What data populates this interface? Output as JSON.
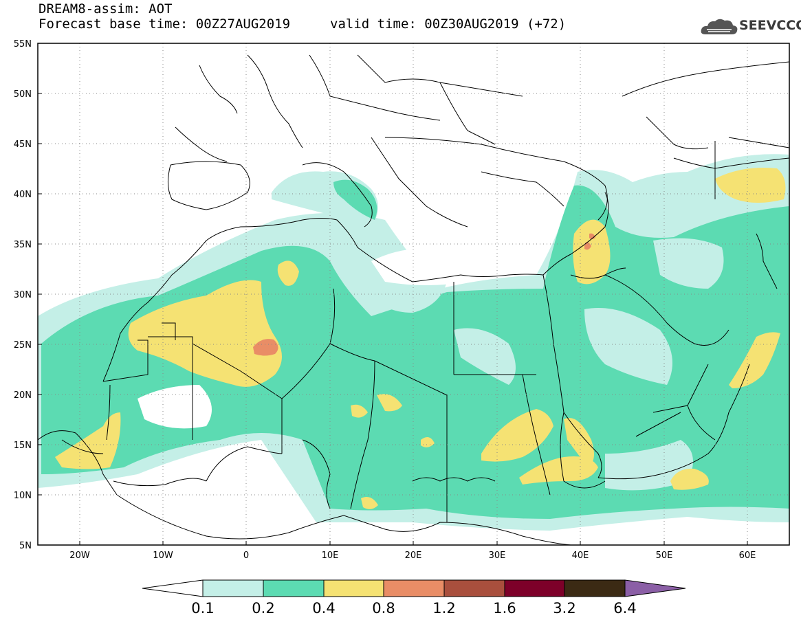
{
  "header": {
    "title_line1": "DREAM8-assim: AOT",
    "title_line2": "Forecast base time: 00Z27AUG2019",
    "valid_time": "valid time: 00Z30AUG2019 (+72)",
    "logo_text": "SEEVCCC",
    "logo_icon": "cloud-logo-icon"
  },
  "map": {
    "variable": "AOT",
    "lon_range": [
      -25,
      65
    ],
    "lat_range": [
      5,
      55
    ],
    "lat_labels": [
      "55N",
      "50N",
      "45N",
      "40N",
      "35N",
      "30N",
      "25N",
      "20N",
      "15N",
      "10N",
      "5N"
    ],
    "lon_labels": [
      "20W",
      "10W",
      "0",
      "10E",
      "20E",
      "30E",
      "40E",
      "50E",
      "60E"
    ],
    "gridlines": "dotted",
    "background_color": "#ffffff",
    "border_color": "#000000"
  },
  "colorbar": {
    "levels": [
      "0.1",
      "0.2",
      "0.4",
      "0.8",
      "1.2",
      "1.6",
      "3.2",
      "6.4"
    ],
    "colors": [
      "#ffffff",
      "#c4efe7",
      "#5cdbb2",
      "#f5e273",
      "#e98d66",
      "#a94f3d",
      "#7d0029",
      "#3b2a14",
      "#8b5fa6"
    ]
  }
}
